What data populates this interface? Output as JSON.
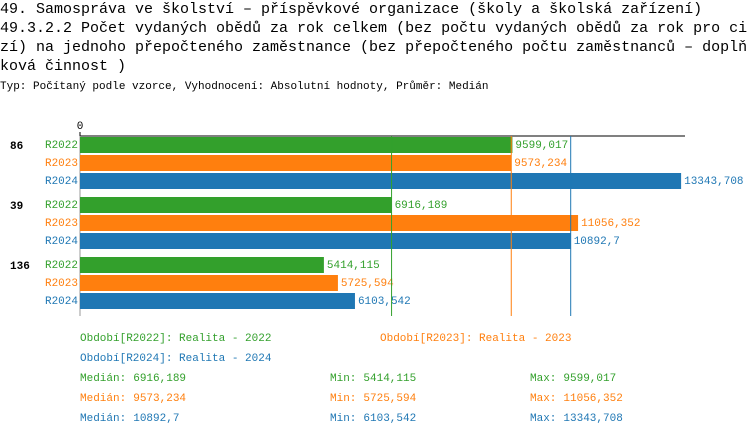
{
  "chart_data": {
    "type": "bar",
    "title": "49. Samospráva ve školství – příspěvkové organizace (školy a školská zařízení)",
    "subtitle": "49.3.2.2 Počet vydaných obědů za rok celkem (bez počtu vydaných obědů za rok pro cizí) na jednoho přepočteného zaměstnance (bez přepočteného počtu zaměstnanců – doplňková činnost )",
    "note": "Typ: Počítaný podle vzorce, Vyhodnocení: Absolutní hodnoty, Průměr: Medián",
    "categories": [
      "86",
      "39",
      "136"
    ],
    "xlim": [
      0,
      13430
    ],
    "xticks": [
      0
    ],
    "stat_names": [
      "Medián:",
      "Min:",
      "Max:"
    ],
    "series": [
      {
        "name": "R2022",
        "legend": "Období[R2022]: Realita - 2022",
        "color": "#33a02c",
        "values": [
          9599.017,
          6916.189,
          5414.115
        ],
        "value_labels": [
          "9599,017",
          "6916,189",
          "5414,115"
        ],
        "stats": [
          6916.189,
          5414.115,
          9599.017
        ],
        "stat_labels": [
          "6916,189",
          "5414,115",
          "9599,017"
        ]
      },
      {
        "name": "R2023",
        "legend": "Období[R2023]: Realita - 2023",
        "color": "#ff7f0e",
        "values": [
          9573.234,
          11056.352,
          5725.594
        ],
        "value_labels": [
          "9573,234",
          "11056,352",
          "5725,594"
        ],
        "stats": [
          9573.234,
          5725.594,
          11056.352
        ],
        "stat_labels": [
          "9573,234",
          "5725,594",
          "11056,352"
        ]
      },
      {
        "name": "R2024",
        "legend": "Období[R2024]: Realita - 2024",
        "color": "#1f77b4",
        "values": [
          13343.708,
          10892.7,
          6103.542
        ],
        "value_labels": [
          "13343,708",
          "10892,7",
          "6103,542"
        ],
        "stats": [
          10892.7,
          6103.542,
          13343.708
        ],
        "stat_labels": [
          "10892,7",
          "6103,542",
          "13343,708"
        ]
      }
    ]
  }
}
